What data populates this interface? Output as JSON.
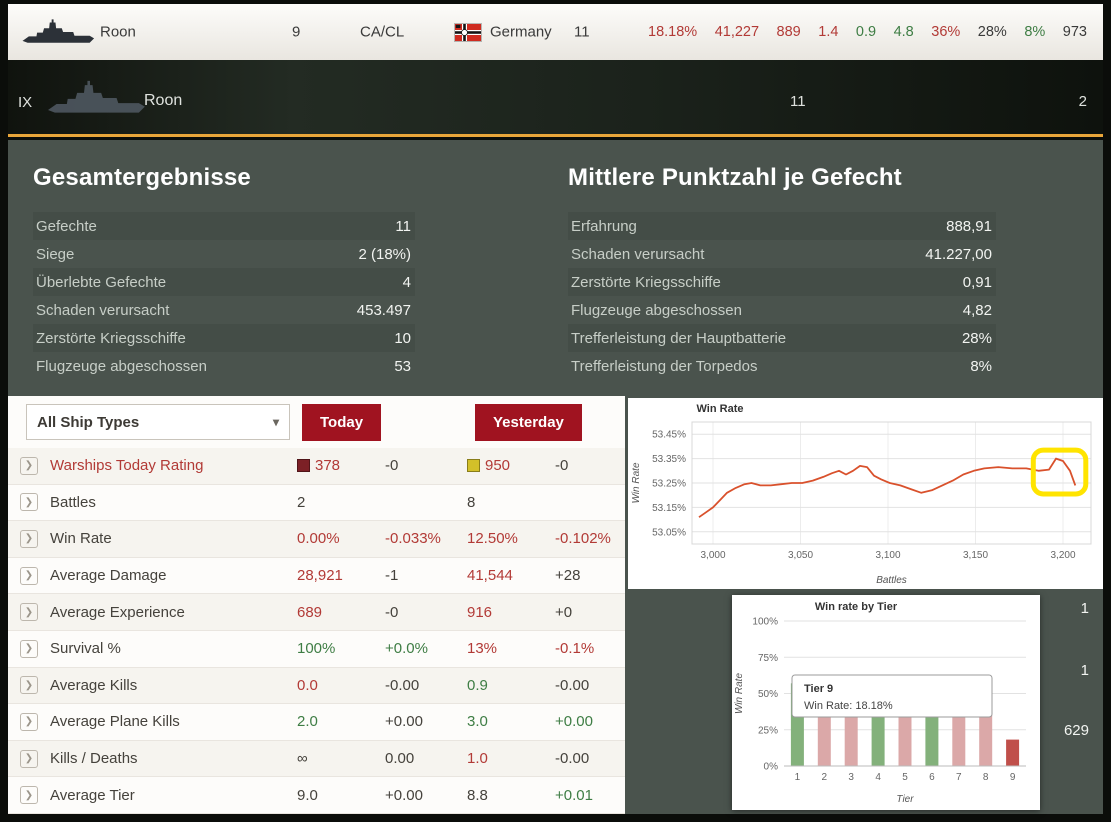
{
  "theme": {
    "accent_red": "#b23a36",
    "accent_green": "#3e7d44",
    "button_red": "#a01320",
    "banner_underline": "#e9a63a",
    "summary_background": "#4a534d",
    "rating_badge_today": "#7c2026",
    "rating_badge_yesterday": "#d3c029",
    "line_color": "#d9512c",
    "highlight_color": "#ffe400"
  },
  "icons": {
    "chevron_right": "❯",
    "caret_down": "▾"
  },
  "top_bar": {
    "ship_name": "Roon",
    "tier": "9",
    "ship_class": "CA/CL",
    "nation": "Germany",
    "battles": "11",
    "stats": [
      {
        "value": "18.18%",
        "color": "red"
      },
      {
        "value": "41,227",
        "color": "red"
      },
      {
        "value": "889",
        "color": "red"
      },
      {
        "value": "1.4",
        "color": "red"
      },
      {
        "value": "0.9",
        "color": "green"
      },
      {
        "value": "4.8",
        "color": "green"
      },
      {
        "value": "36%",
        "color": "red"
      },
      {
        "value": "28%",
        "color": "dark"
      },
      {
        "value": "8%",
        "color": "green"
      },
      {
        "value": "973",
        "color": "dark"
      }
    ]
  },
  "banner": {
    "tier_label": "IX",
    "ship_name": "Roon",
    "value_center": "11",
    "value_right": "2"
  },
  "summary": {
    "left": {
      "title": "Gesamtergebnisse",
      "rows": [
        {
          "label": "Gefechte",
          "value": "11"
        },
        {
          "label": "Siege",
          "value": "2  (18%)"
        },
        {
          "label": "Überlebte Gefechte",
          "value": "4"
        },
        {
          "label": "Schaden verursacht",
          "value": "453.497"
        },
        {
          "label": "Zerstörte Kriegsschiffe",
          "value": "10"
        },
        {
          "label": "Flugzeuge abgeschossen",
          "value": "53"
        }
      ]
    },
    "right": {
      "title": "Mittlere Punktzahl je Gefecht",
      "rows": [
        {
          "label": "Erfahrung",
          "value": "888,91"
        },
        {
          "label": "Schaden verursacht",
          "value": "41.227,00"
        },
        {
          "label": "Zerstörte Kriegsschiffe",
          "value": "0,91"
        },
        {
          "label": "Flugzeuge abgeschossen",
          "value": "4,82"
        },
        {
          "label": "Trefferleistung der Hauptbatterie",
          "value": "28%"
        },
        {
          "label": "Trefferleistung der Torpedos",
          "value": "8%"
        }
      ]
    }
  },
  "stats_panel": {
    "filter_label": "All Ship Types",
    "today_label": "Today",
    "yesterday_label": "Yesterday",
    "rows": [
      {
        "label": "Warships Today Rating",
        "label_style": "red",
        "today": {
          "text": "378",
          "style": "red",
          "badge": "#7c2026"
        },
        "today_delta": {
          "text": "-0",
          "style": "dark"
        },
        "yesterday": {
          "text": "950",
          "style": "red",
          "badge": "#d3c029"
        },
        "yesterday_delta": {
          "text": "-0",
          "style": "dark"
        }
      },
      {
        "label": "Battles",
        "today": {
          "text": "2",
          "style": "dark"
        },
        "today_delta": {
          "text": "",
          "style": "dark"
        },
        "yesterday": {
          "text": "8",
          "style": "dark"
        },
        "yesterday_delta": {
          "text": "",
          "style": "dark"
        }
      },
      {
        "label": "Win Rate",
        "today": {
          "text": "0.00%",
          "style": "red"
        },
        "today_delta": {
          "text": "-0.033%",
          "style": "red"
        },
        "yesterday": {
          "text": "12.50%",
          "style": "red"
        },
        "yesterday_delta": {
          "text": "-0.102%",
          "style": "red"
        }
      },
      {
        "label": "Average Damage",
        "today": {
          "text": "28,921",
          "style": "red"
        },
        "today_delta": {
          "text": "-1",
          "style": "dark"
        },
        "yesterday": {
          "text": "41,544",
          "style": "red"
        },
        "yesterday_delta": {
          "text": "+28",
          "style": "dark"
        }
      },
      {
        "label": "Average Experience",
        "today": {
          "text": "689",
          "style": "red"
        },
        "today_delta": {
          "text": "-0",
          "style": "dark"
        },
        "yesterday": {
          "text": "916",
          "style": "red"
        },
        "yesterday_delta": {
          "text": "+0",
          "style": "dark"
        }
      },
      {
        "label": "Survival %",
        "today": {
          "text": "100%",
          "style": "green"
        },
        "today_delta": {
          "text": "+0.0%",
          "style": "green"
        },
        "yesterday": {
          "text": "13%",
          "style": "red"
        },
        "yesterday_delta": {
          "text": "-0.1%",
          "style": "red"
        }
      },
      {
        "label": "Average Kills",
        "today": {
          "text": "0.0",
          "style": "red"
        },
        "today_delta": {
          "text": "-0.00",
          "style": "dark"
        },
        "yesterday": {
          "text": "0.9",
          "style": "green"
        },
        "yesterday_delta": {
          "text": "-0.00",
          "style": "dark"
        }
      },
      {
        "label": "Average Plane Kills",
        "today": {
          "text": "2.0",
          "style": "green"
        },
        "today_delta": {
          "text": "+0.00",
          "style": "dark"
        },
        "yesterday": {
          "text": "3.0",
          "style": "green"
        },
        "yesterday_delta": {
          "text": "+0.00",
          "style": "green"
        }
      },
      {
        "label": "Kills / Deaths",
        "today": {
          "text": "∞",
          "style": "dark"
        },
        "today_delta": {
          "text": "0.00",
          "style": "dark"
        },
        "yesterday": {
          "text": "1.0",
          "style": "red"
        },
        "yesterday_delta": {
          "text": "-0.00",
          "style": "dark"
        }
      },
      {
        "label": "Average Tier",
        "today": {
          "text": "9.0",
          "style": "dark"
        },
        "today_delta": {
          "text": "+0.00",
          "style": "dark"
        },
        "yesterday": {
          "text": "8.8",
          "style": "dark"
        },
        "yesterday_delta": {
          "text": "+0.01",
          "style": "green"
        }
      }
    ]
  },
  "side_values": [
    "1",
    "1",
    "629"
  ],
  "chart_data": [
    {
      "type": "line",
      "title": "Win Rate",
      "xlabel": "Battles",
      "ylabel": "Win Rate",
      "xlim": [
        2988,
        3216
      ],
      "ylim": [
        53.0,
        53.5
      ],
      "grid": true,
      "legend": "none",
      "line_color": "#d9512c",
      "yticks": [
        {
          "v": 53.05,
          "label": "53.05%"
        },
        {
          "v": 53.15,
          "label": "53.15%"
        },
        {
          "v": 53.25,
          "label": "53.25%"
        },
        {
          "v": 53.35,
          "label": "53.35%"
        },
        {
          "v": 53.45,
          "label": "53.45%"
        }
      ],
      "xticks": [
        {
          "v": 3000,
          "label": "3,000"
        },
        {
          "v": 3050,
          "label": "3,050"
        },
        {
          "v": 3100,
          "label": "3,100"
        },
        {
          "v": 3150,
          "label": "3,150"
        },
        {
          "v": 3200,
          "label": "3,200"
        }
      ],
      "points": [
        [
          2992,
          53.11
        ],
        [
          2996,
          53.13
        ],
        [
          3000,
          53.15
        ],
        [
          3004,
          53.18
        ],
        [
          3008,
          53.21
        ],
        [
          3013,
          53.23
        ],
        [
          3018,
          53.245
        ],
        [
          3022,
          53.25
        ],
        [
          3027,
          53.24
        ],
        [
          3033,
          53.24
        ],
        [
          3039,
          53.245
        ],
        [
          3045,
          53.25
        ],
        [
          3051,
          53.25
        ],
        [
          3057,
          53.26
        ],
        [
          3063,
          53.275
        ],
        [
          3068,
          53.29
        ],
        [
          3072,
          53.3
        ],
        [
          3076,
          53.285
        ],
        [
          3080,
          53.3
        ],
        [
          3084,
          53.32
        ],
        [
          3088,
          53.315
        ],
        [
          3092,
          53.28
        ],
        [
          3096,
          53.265
        ],
        [
          3101,
          53.25
        ],
        [
          3107,
          53.24
        ],
        [
          3113,
          53.225
        ],
        [
          3119,
          53.21
        ],
        [
          3125,
          53.22
        ],
        [
          3131,
          53.24
        ],
        [
          3137,
          53.26
        ],
        [
          3143,
          53.285
        ],
        [
          3149,
          53.3
        ],
        [
          3155,
          53.31
        ],
        [
          3163,
          53.315
        ],
        [
          3171,
          53.31
        ],
        [
          3179,
          53.31
        ],
        [
          3186,
          53.3
        ],
        [
          3192,
          53.305
        ],
        [
          3196,
          53.35
        ],
        [
          3200,
          53.34
        ],
        [
          3204,
          53.3
        ],
        [
          3207,
          53.24
        ]
      ],
      "highlight": {
        "x1": 3183,
        "x2": 3213,
        "y1": 53.205,
        "y2": 53.385,
        "color": "#ffe400"
      }
    },
    {
      "type": "bar",
      "title": "Win rate by Tier",
      "xlabel": "Tier",
      "ylabel": "Win Rate",
      "ylim": [
        0,
        100
      ],
      "grid": true,
      "yticks": [
        {
          "v": 0,
          "label": "0%"
        },
        {
          "v": 25,
          "label": "25%"
        },
        {
          "v": 50,
          "label": "50%"
        },
        {
          "v": 75,
          "label": "75%"
        },
        {
          "v": 100,
          "label": "100%"
        }
      ],
      "categories": [
        "1",
        "2",
        "3",
        "4",
        "5",
        "6",
        "7",
        "8",
        "9"
      ],
      "values": [
        57,
        42,
        41,
        45,
        43,
        46,
        44,
        40,
        18.18
      ],
      "bar_colors": [
        "#83b17b",
        "#dba8a8",
        "#dba8a8",
        "#83b17b",
        "#dba8a8",
        "#83b17b",
        "#dba8a8",
        "#dba8a8",
        "#c04f4a"
      ],
      "tooltip": {
        "title": "Tier 9",
        "text": "Win Rate: 18.18%"
      }
    }
  ]
}
